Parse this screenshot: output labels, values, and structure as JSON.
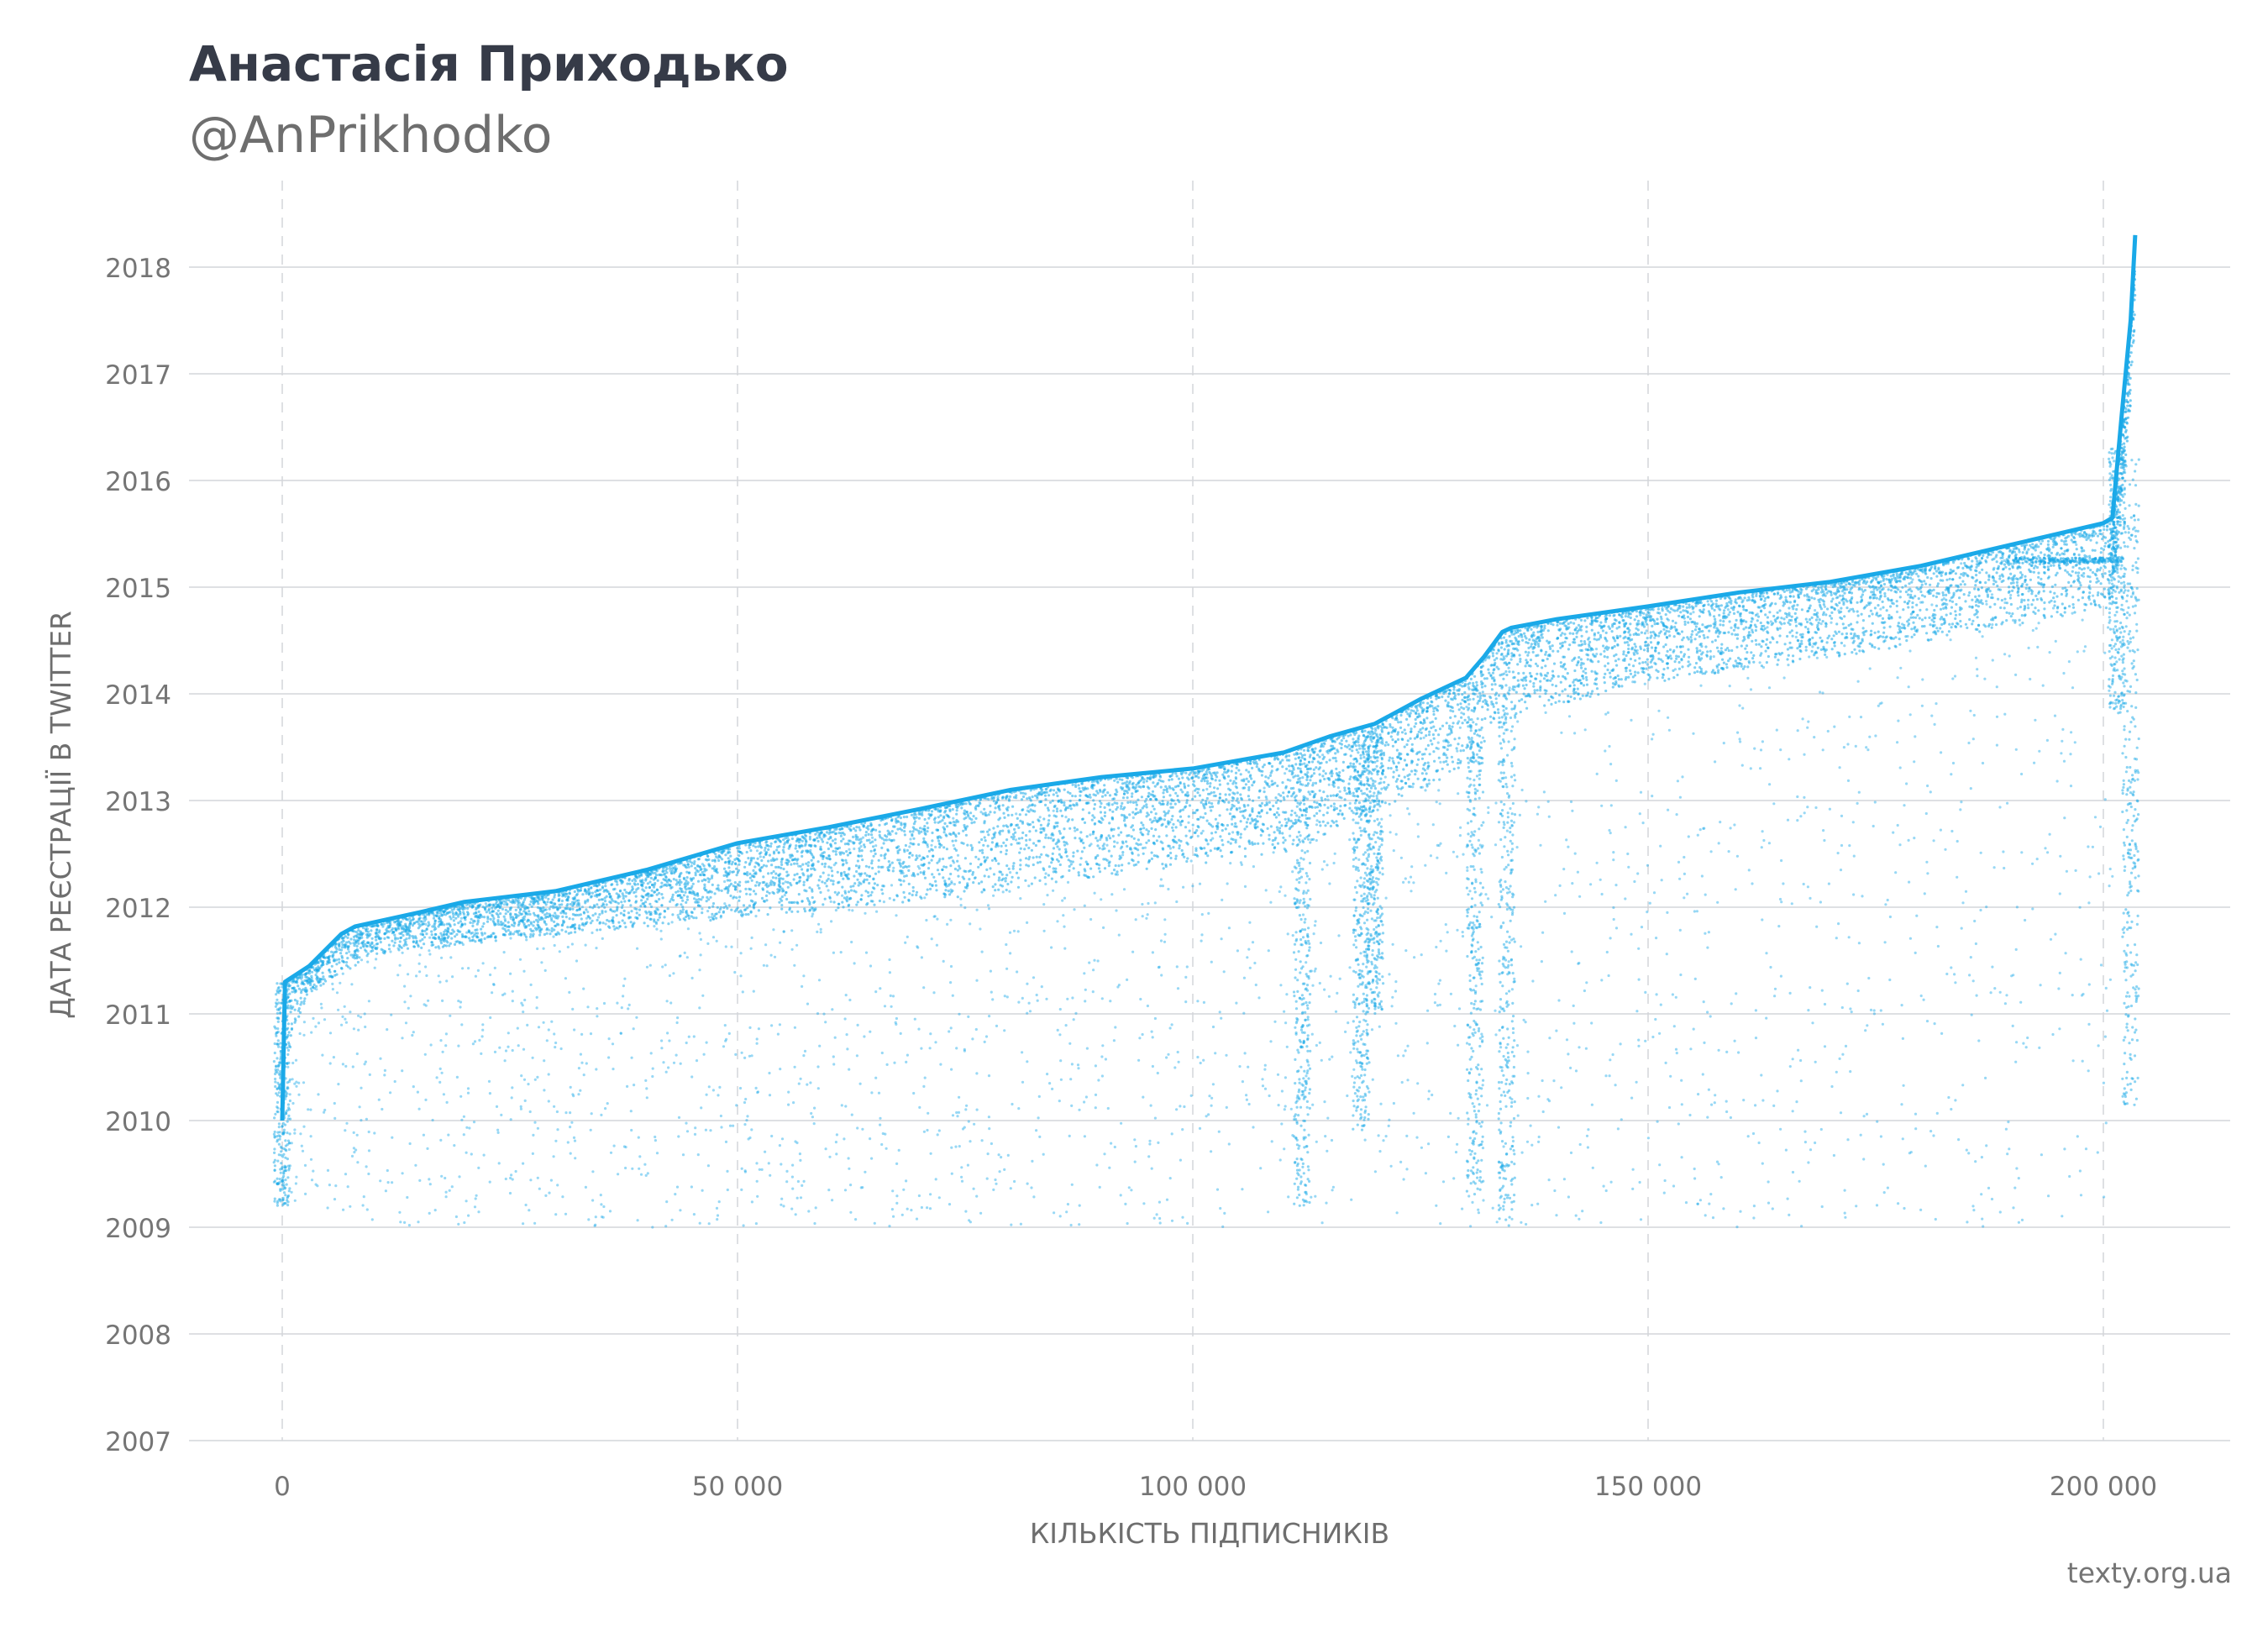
{
  "header": {
    "title": "Анастасія Приходько",
    "subtitle": "@AnPrikhodko"
  },
  "footer": {
    "source": "texty.org.ua"
  },
  "colors": {
    "points": "#1aa9e8",
    "text": "#363b48",
    "muted": "#757575",
    "grid": "#d3d5da"
  },
  "chart_data": {
    "type": "scatter",
    "title": "Анастасія Приходько",
    "subtitle": "@AnPrikhodko",
    "xlabel": "КІЛЬКІСТЬ ПІДПИСНИКІВ",
    "ylabel": "ДАТА РЕЄСТРАЦІЇ В TWITTER",
    "xlim": [
      -10000,
      214000
    ],
    "ylim": [
      2007,
      2018.9
    ],
    "x_ticks": [
      0,
      50000,
      100000,
      150000,
      200000
    ],
    "x_tick_labels": [
      "0",
      "50 000",
      "100 000",
      "150 000",
      "200 000"
    ],
    "y_ticks": [
      2007,
      2008,
      2009,
      2010,
      2011,
      2012,
      2013,
      2014,
      2015,
      2016,
      2017,
      2018
    ],
    "y_tick_labels": [
      "2007",
      "2008",
      "2009",
      "2010",
      "2011",
      "2012",
      "2013",
      "2014",
      "2015",
      "2016",
      "2017",
      "2018"
    ],
    "grid": {
      "horizontal": "solid",
      "vertical": "dashed"
    },
    "legend": "none",
    "series": [
      {
        "description": "upper envelope: latest registration date among followers by follower index",
        "x": [
          0,
          300,
          3000,
          6500,
          8000,
          15000,
          20000,
          30000,
          40000,
          50000,
          60000,
          70000,
          80000,
          90000,
          100000,
          110000,
          115000,
          120000,
          125000,
          130000,
          132000,
          134000,
          135000,
          140000,
          150000,
          160000,
          170000,
          180000,
          190000,
          200000,
          201000,
          202000,
          203000,
          203500
        ],
        "y": [
          2010.0,
          2011.3,
          2011.45,
          2011.75,
          2011.82,
          2011.95,
          2012.05,
          2012.15,
          2012.35,
          2012.6,
          2012.75,
          2012.92,
          2013.1,
          2013.22,
          2013.3,
          2013.45,
          2013.6,
          2013.72,
          2013.95,
          2014.15,
          2014.35,
          2014.58,
          2014.62,
          2014.7,
          2014.82,
          2014.95,
          2015.05,
          2015.2,
          2015.4,
          2015.6,
          2015.65,
          2016.6,
          2017.5,
          2018.3
        ]
      },
      {
        "description": "lower boundary of the dense band of followers",
        "x": [
          0,
          3000,
          10000,
          25000,
          50000,
          75000,
          100000,
          110000,
          120000,
          130000,
          135000,
          150000,
          175000,
          200000
        ],
        "y": [
          2010.6,
          2011.2,
          2011.55,
          2011.7,
          2011.9,
          2012.1,
          2012.4,
          2012.5,
          2012.9,
          2013.3,
          2013.8,
          2014.1,
          2014.4,
          2014.8
        ]
      },
      {
        "description": "vertical clusters of followers spanning older registration years",
        "x": [
          0,
          112000,
          118500,
          120000,
          131000,
          134500,
          201500,
          203000
        ],
        "y_range": [
          [
            2009.2,
            2011.3
          ],
          [
            2009.2,
            2013.4
          ],
          [
            2009.9,
            2013.6
          ],
          [
            2011.0,
            2013.7
          ],
          [
            2009.3,
            2014.1
          ],
          [
            2009.0,
            2014.5
          ],
          [
            2013.8,
            2016.3
          ],
          [
            2010.1,
            2016.2
          ]
        ]
      }
    ],
    "horizontal_clusters": [
      {
        "x_range": [
          190000,
          202000
        ],
        "y": 2015.25
      }
    ]
  }
}
